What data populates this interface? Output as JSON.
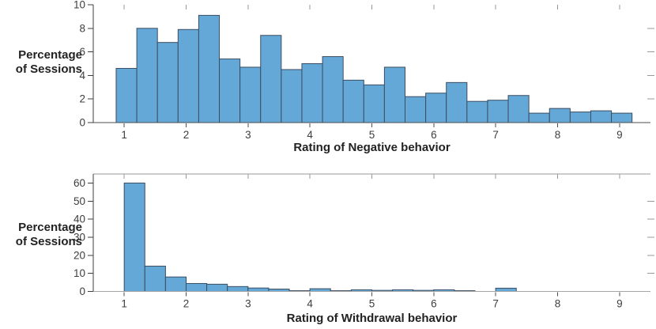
{
  "figure": {
    "background": "#ffffff",
    "bar_fill": "#64a8d7",
    "bar_edge": "#3b4d61",
    "axis_dark": "#3f3f3f",
    "baseline_dark": "#4d4d4d",
    "baseline_light": "#a6a6a6",
    "mirror_tick_color": "#999999",
    "tick_label_color": "#3d3d3d",
    "label_color": "#222222"
  },
  "chart_data": [
    {
      "type": "bar",
      "subtype": "histogram",
      "xlabel": "Rating of Negative behavior",
      "ylabel": "Percentage of Sessions",
      "ylabel_lines": [
        "Percentage",
        "of Sessions"
      ],
      "xlim": [
        0.5,
        9.5
      ],
      "ylim": [
        0,
        10
      ],
      "xticks": [
        1,
        2,
        3,
        4,
        5,
        6,
        7,
        8,
        9
      ],
      "yticks": [
        0,
        2,
        4,
        6,
        8,
        10
      ],
      "right_ticks": [
        2,
        4,
        6,
        8
      ],
      "top_spine": false,
      "grid": false,
      "legend": null,
      "bin_start": 0.87,
      "bin_width": 0.3333,
      "values": [
        4.6,
        8.0,
        6.8,
        7.9,
        9.1,
        5.4,
        4.7,
        7.4,
        4.5,
        5.0,
        5.6,
        3.6,
        3.2,
        4.7,
        2.2,
        2.5,
        3.4,
        1.8,
        1.9,
        2.3,
        0.8,
        1.2,
        0.9,
        1.0,
        0.8
      ]
    },
    {
      "type": "bar",
      "subtype": "histogram",
      "xlabel": "Rating of Withdrawal behavior",
      "ylabel": "Percentage of Sessions",
      "ylabel_lines": [
        "Percentage",
        "of Sessions"
      ],
      "xlim": [
        0.5,
        9.5
      ],
      "ylim": [
        0,
        65
      ],
      "xticks": [
        1,
        2,
        3,
        4,
        5,
        6,
        7,
        8,
        9
      ],
      "yticks": [
        0,
        10,
        20,
        30,
        40,
        50,
        60
      ],
      "right_ticks": [
        10,
        20,
        30,
        40,
        50
      ],
      "top_spine": true,
      "grid": false,
      "legend": null,
      "bin_start": 1.0,
      "bin_width": 0.3333,
      "values": [
        60,
        14,
        8,
        4.4,
        4.0,
        2.7,
        1.9,
        1.3,
        0.4,
        1.5,
        0.4,
        0.9,
        0.6,
        0.9,
        0.6,
        0.9,
        0.4,
        0,
        1.8,
        0,
        0,
        0,
        0,
        0,
        0
      ]
    }
  ]
}
